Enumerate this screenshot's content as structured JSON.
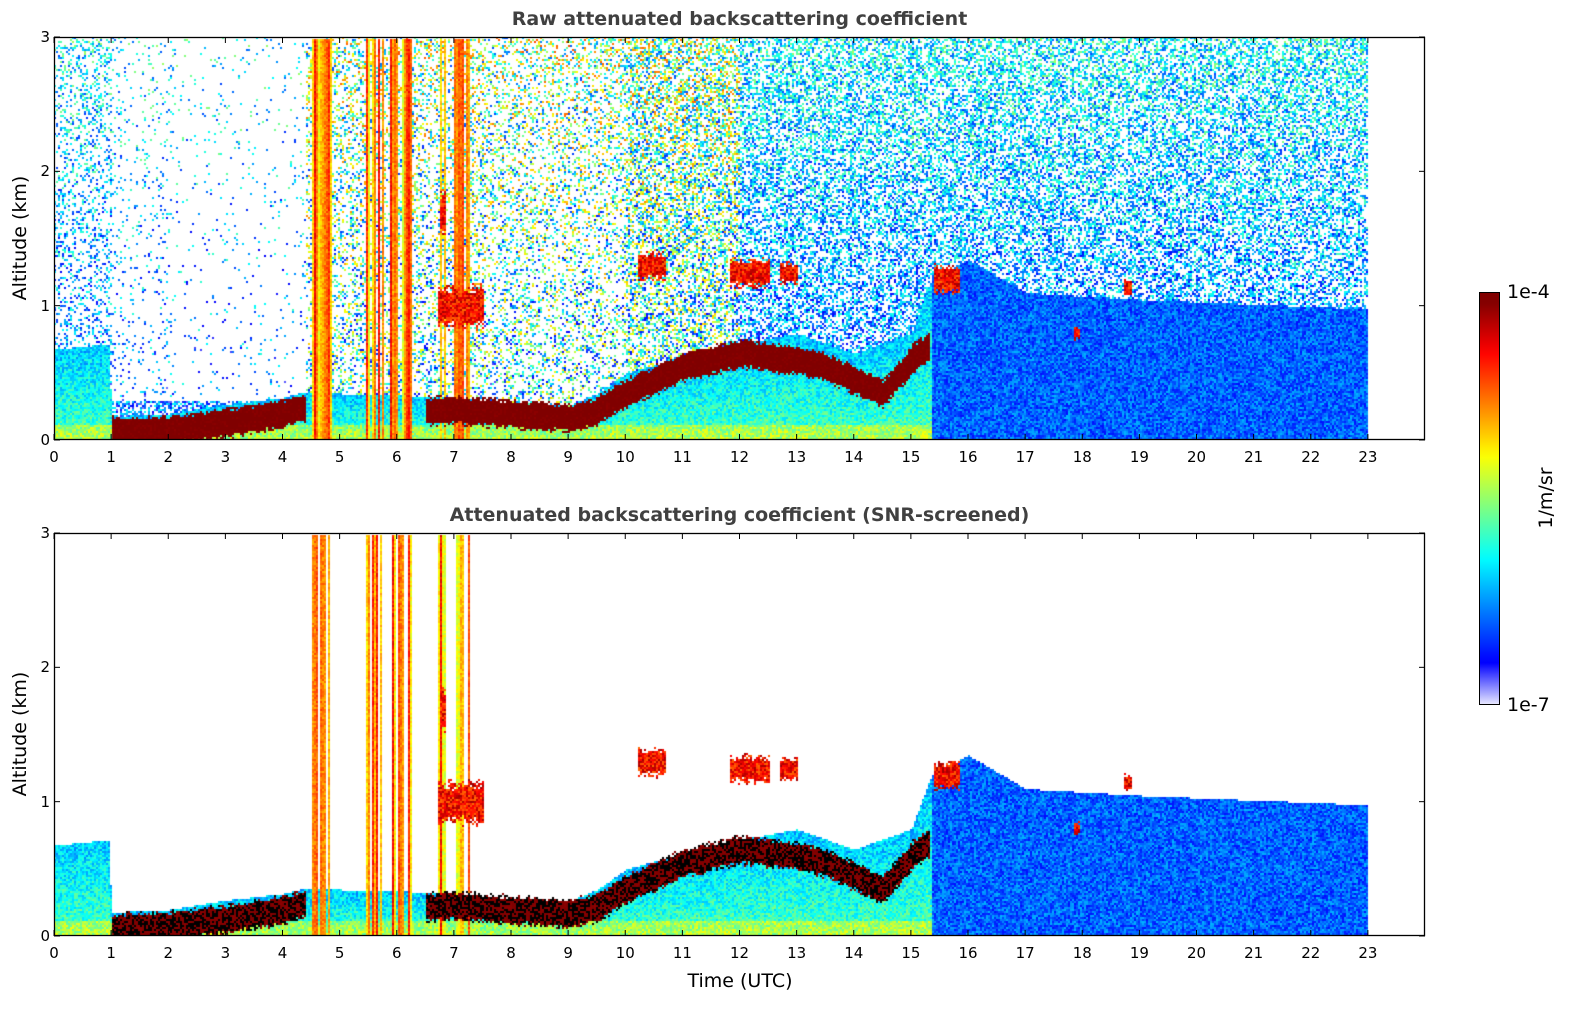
{
  "chart_data": [
    {
      "type": "heatmap",
      "panel": "raw",
      "title": "Raw attenuated backscattering coefficient",
      "xlabel": "",
      "ylabel": "Altitude (km)",
      "xlim": [
        0,
        24
      ],
      "ylim": [
        0,
        3
      ],
      "screened": false
    },
    {
      "type": "heatmap",
      "panel": "snr",
      "title": "Attenuated backscattering coefficient (SNR-screened)",
      "xlabel": "Time (UTC)",
      "ylabel": "Altitude (km)",
      "xlim": [
        0,
        24
      ],
      "ylim": [
        0,
        3
      ],
      "screened": true
    }
  ],
  "xticks": [
    "0",
    "1",
    "2",
    "3",
    "4",
    "5",
    "6",
    "7",
    "8",
    "9",
    "10",
    "11",
    "12",
    "13",
    "14",
    "15",
    "16",
    "17",
    "18",
    "19",
    "20",
    "21",
    "22",
    "23"
  ],
  "yticks": [
    "0",
    "1",
    "2",
    "3"
  ],
  "colorbar": {
    "label": "1/m/sr",
    "max_label": "1e-4",
    "min_label": "1e-7",
    "log_min": -7,
    "log_max": -4,
    "colormap": "jet"
  },
  "features": {
    "data_end_hour": 23,
    "mixing_layer_top_km": [
      [
        0,
        0.68
      ],
      [
        0.95,
        0.72
      ],
      [
        1.0,
        0.18
      ],
      [
        2,
        0.2
      ],
      [
        3,
        0.27
      ],
      [
        4,
        0.32
      ],
      [
        4.4,
        0.36
      ],
      [
        5,
        0.35
      ],
      [
        6,
        0.34
      ],
      [
        7,
        0.32
      ],
      [
        8,
        0.28
      ],
      [
        9,
        0.26
      ],
      [
        9.5,
        0.35
      ],
      [
        10,
        0.5
      ],
      [
        11,
        0.62
      ],
      [
        12,
        0.72
      ],
      [
        13,
        0.8
      ],
      [
        14,
        0.65
      ],
      [
        15,
        0.8
      ],
      [
        15.35,
        1.2
      ],
      [
        16,
        1.35
      ],
      [
        17,
        1.1
      ],
      [
        19,
        1.05
      ],
      [
        23,
        0.98
      ]
    ],
    "strong_layer_km": [
      [
        1.0,
        0.07
      ],
      [
        2,
        0.08
      ],
      [
        3,
        0.13
      ],
      [
        4,
        0.2
      ],
      [
        4.4,
        0.25
      ],
      [
        4.45,
        null
      ],
      [
        6.5,
        0.22
      ],
      [
        7,
        0.23
      ],
      [
        8,
        0.2
      ],
      [
        9,
        0.17
      ],
      [
        9.5,
        0.22
      ],
      [
        10,
        0.35
      ],
      [
        11,
        0.55
      ],
      [
        12,
        0.65
      ],
      [
        13,
        0.6
      ],
      [
        13.5,
        0.55
      ],
      [
        14,
        0.45
      ],
      [
        14.5,
        0.35
      ],
      [
        15,
        0.6
      ],
      [
        15.3,
        0.7
      ],
      [
        15.35,
        null
      ]
    ],
    "clouds": [
      [
        10.2,
        10.7,
        1.3,
        0.1
      ],
      [
        11.8,
        12.5,
        1.25,
        0.1
      ],
      [
        12.7,
        13.0,
        1.25,
        0.08
      ],
      [
        15.4,
        15.85,
        1.2,
        0.1
      ],
      [
        6.7,
        7.5,
        1.0,
        0.15
      ],
      [
        6.75,
        6.85,
        1.7,
        0.15
      ],
      [
        17.85,
        17.95,
        0.8,
        0.05
      ],
      [
        18.7,
        18.85,
        1.15,
        0.06
      ]
    ],
    "fall_streaks": [
      [
        4.5,
        4.85
      ],
      [
        5.45,
        5.75
      ],
      [
        5.85,
        6.25
      ],
      [
        6.7,
        6.85
      ],
      [
        7.0,
        7.25
      ]
    ],
    "log_backscatter_values": {
      "aerosol_day": -5.7,
      "aerosol_night": -6.4,
      "strong_layer": -4.1,
      "cloud": -4.15,
      "fall_streak": -5.0
    }
  }
}
